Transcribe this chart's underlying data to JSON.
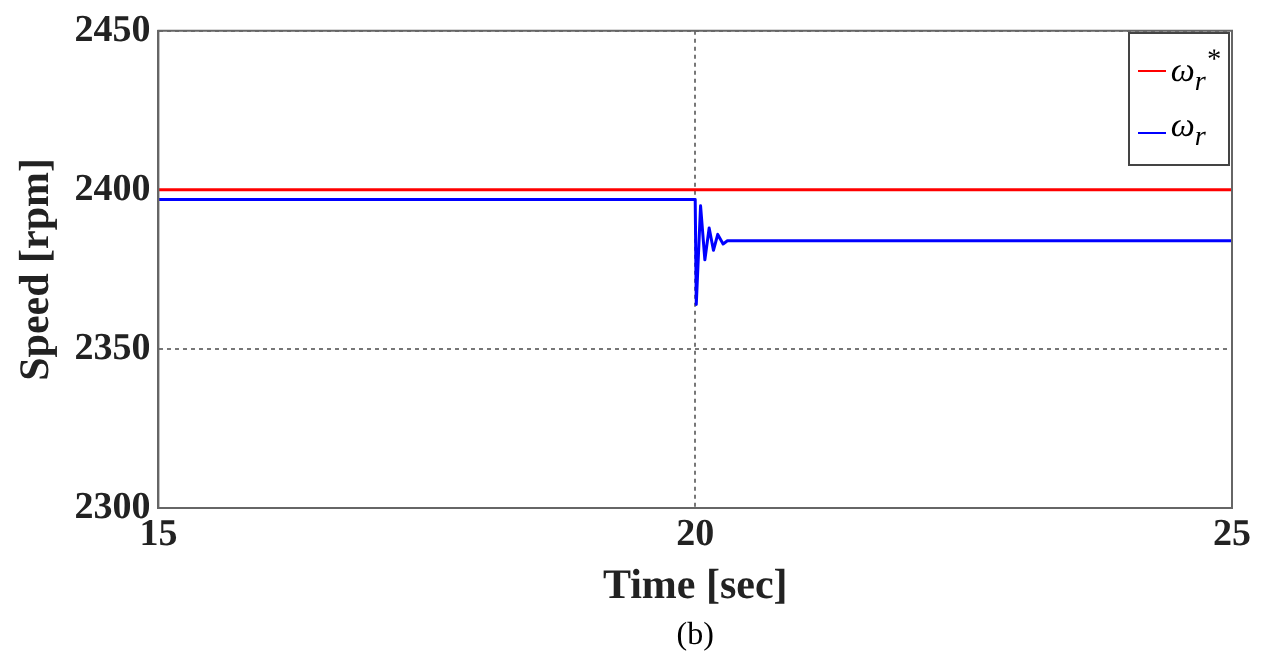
{
  "chart_data": {
    "type": "line",
    "xlabel": "Time [sec]",
    "ylabel": "Speed [rpm]",
    "annotations": [
      "(b)"
    ],
    "xlim": [
      15,
      25
    ],
    "xticks": [
      15,
      20,
      25
    ],
    "ylim": [
      2300,
      2450
    ],
    "yticks": [
      2300,
      2350,
      2400,
      2450
    ],
    "grid": true,
    "legend": "top right",
    "line_style": "solid",
    "marker": "none",
    "series": [
      {
        "name": "ω$_{r}$$^{*}$",
        "color": "#ff0000",
        "x": [
          15,
          25
        ],
        "values": [
          2400,
          2400
        ]
      },
      {
        "name": "ω$_{r}$",
        "color": "#0000ff",
        "x": [
          15,
          20,
          20.01,
          20.05,
          20.09,
          20.13,
          20.17,
          20.21,
          20.26,
          20.3,
          25
        ],
        "values": [
          2397,
          2397,
          2364,
          2395,
          2378,
          2388,
          2381,
          2386,
          2383,
          2384,
          2384
        ]
      }
    ]
  }
}
